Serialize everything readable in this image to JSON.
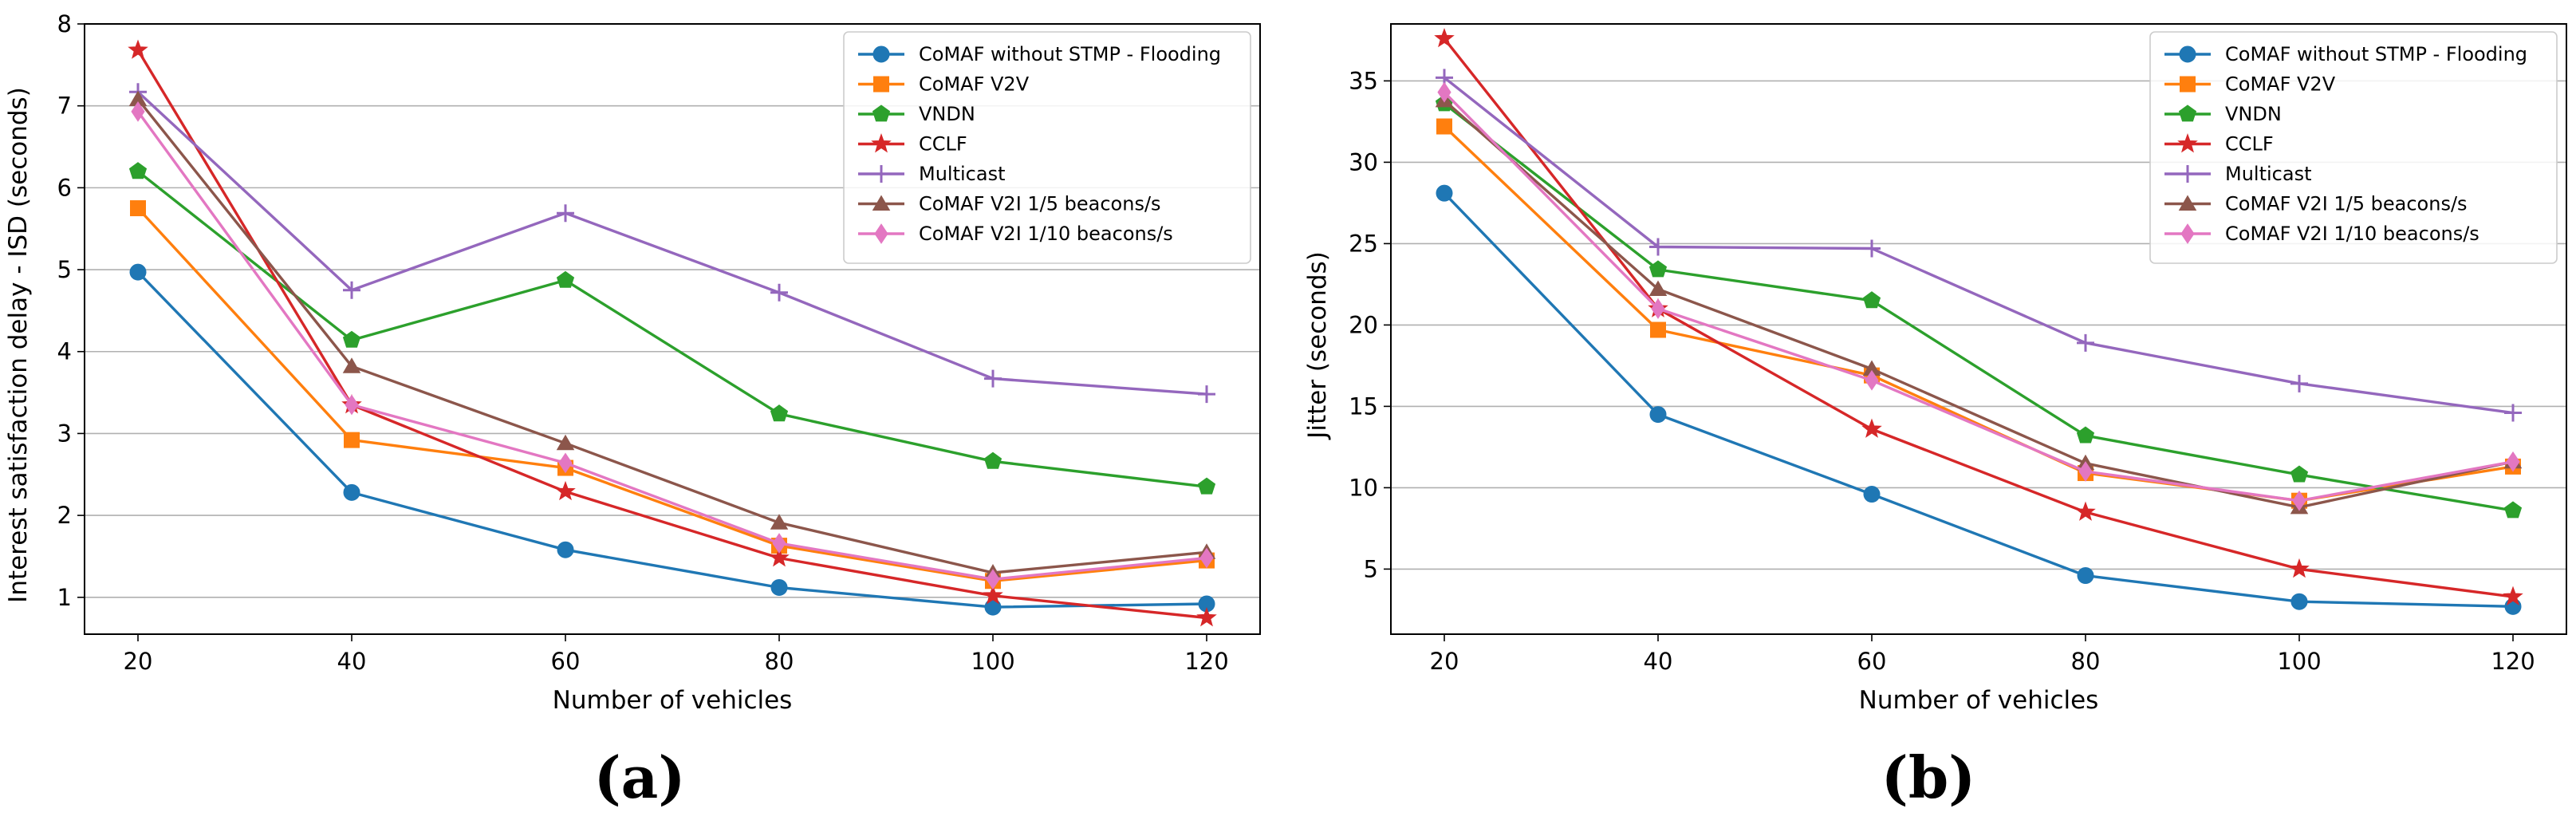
{
  "series_style": [
    {
      "color": "#1f77b4",
      "marker": "circle"
    },
    {
      "color": "#ff7f0e",
      "marker": "square"
    },
    {
      "color": "#2ca02c",
      "marker": "pentagon"
    },
    {
      "color": "#d62728",
      "marker": "star"
    },
    {
      "color": "#9467bd",
      "marker": "plus"
    },
    {
      "color": "#8c564b",
      "marker": "triangle"
    },
    {
      "color": "#e377c2",
      "marker": "diamond"
    }
  ],
  "chart_data": [
    {
      "type": "line",
      "panel_label": "(a)",
      "title": "",
      "xlabel": "Number of vehicles",
      "ylabel": "Interest satisfaction delay - ISD  (seconds)",
      "x": [
        20,
        40,
        60,
        80,
        100,
        120
      ],
      "xlim": [
        15,
        125
      ],
      "ylim": [
        0.55,
        8.0
      ],
      "yticks": [
        1,
        2,
        3,
        4,
        5,
        6,
        7,
        8
      ],
      "grid": "horizontal",
      "legend": "top-right",
      "series": [
        {
          "name": "CoMAF without STMP - Flooding",
          "values": [
            4.97,
            2.28,
            1.58,
            1.12,
            0.88,
            0.92
          ]
        },
        {
          "name": "CoMAF V2V",
          "values": [
            5.75,
            2.92,
            2.58,
            1.63,
            1.2,
            1.45
          ]
        },
        {
          "name": "VNDN",
          "values": [
            6.2,
            4.14,
            4.87,
            3.24,
            2.66,
            2.35
          ]
        },
        {
          "name": "CCLF",
          "values": [
            7.68,
            3.35,
            2.29,
            1.48,
            1.02,
            0.75
          ]
        },
        {
          "name": "Multicast",
          "values": [
            7.17,
            4.75,
            5.69,
            4.72,
            3.67,
            3.48
          ]
        },
        {
          "name": "CoMAF V2I 1/5 beacons/s",
          "values": [
            7.08,
            3.82,
            2.88,
            1.91,
            1.3,
            1.55
          ]
        },
        {
          "name": "CoMAF V2I 1/10 beacons/s",
          "values": [
            6.93,
            3.35,
            2.64,
            1.66,
            1.22,
            1.48
          ]
        }
      ]
    },
    {
      "type": "line",
      "panel_label": "(b)",
      "title": "",
      "xlabel": "Number of vehicles",
      "ylabel": "Jitter (seconds)",
      "x": [
        20,
        40,
        60,
        80,
        100,
        120
      ],
      "xlim": [
        15,
        125
      ],
      "ylim": [
        1.0,
        38.5
      ],
      "yticks": [
        5,
        10,
        15,
        20,
        25,
        30,
        35
      ],
      "grid": "horizontal",
      "legend": "top-right",
      "series": [
        {
          "name": "CoMAF without STMP - Flooding",
          "values": [
            28.1,
            14.5,
            9.6,
            4.6,
            3.0,
            2.7
          ]
        },
        {
          "name": "CoMAF V2V",
          "values": [
            32.2,
            19.7,
            16.9,
            10.9,
            9.2,
            11.3
          ]
        },
        {
          "name": "VNDN",
          "values": [
            33.6,
            23.4,
            21.5,
            13.2,
            10.8,
            8.6
          ]
        },
        {
          "name": "CCLF",
          "values": [
            37.6,
            21.0,
            13.6,
            8.5,
            5.0,
            3.3
          ]
        },
        {
          "name": "Multicast",
          "values": [
            35.2,
            24.8,
            24.7,
            18.9,
            16.4,
            14.6
          ]
        },
        {
          "name": "CoMAF V2I 1/5 beacons/s",
          "values": [
            33.8,
            22.2,
            17.3,
            11.5,
            8.8,
            11.6
          ]
        },
        {
          "name": "CoMAF V2I 1/10 beacons/s",
          "values": [
            34.3,
            21.0,
            16.6,
            11.0,
            9.2,
            11.6
          ]
        }
      ]
    }
  ]
}
